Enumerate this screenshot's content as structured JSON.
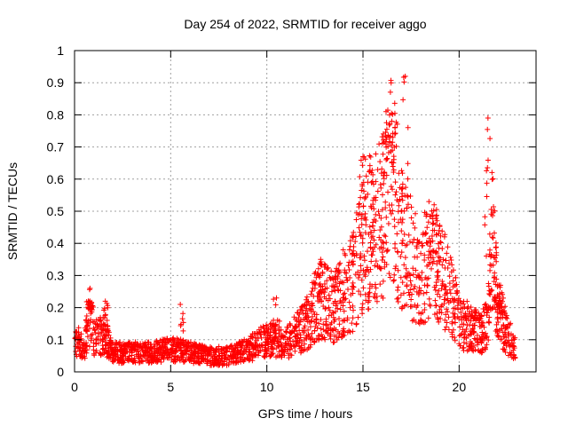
{
  "chart_data": {
    "type": "scatter",
    "title": "Day 254 of 2022, SRMTID for receiver aggo",
    "xlabel": "GPS time / hours",
    "ylabel": "SRMTID / TECUs",
    "xlim": [
      0,
      24
    ],
    "ylim": [
      0,
      1
    ],
    "xticks": [
      0,
      5,
      10,
      15,
      20
    ],
    "yticks": [
      0,
      0.1,
      0.2,
      0.3,
      0.4,
      0.5,
      0.6,
      0.7,
      0.8,
      0.9,
      1
    ],
    "xtick_labels": [
      "0",
      "5",
      "10",
      "15",
      "20"
    ],
    "ytick_labels": [
      "0",
      "0.1",
      "0.2",
      "0.3",
      "0.4",
      "0.5",
      "0.6",
      "0.7",
      "0.8",
      "0.9",
      "1"
    ],
    "grid": true,
    "marker": "+",
    "series": [
      {
        "name": "SRMTID",
        "color": "#ff0000",
        "envelope_note": "approximate trend of dense point cloud",
        "trend": [
          [
            0.0,
            0.11
          ],
          [
            0.5,
            0.08
          ],
          [
            0.8,
            0.18
          ],
          [
            1.0,
            0.1
          ],
          [
            1.5,
            0.12
          ],
          [
            2.0,
            0.06
          ],
          [
            3.0,
            0.06
          ],
          [
            4.0,
            0.06
          ],
          [
            5.0,
            0.07
          ],
          [
            6.0,
            0.06
          ],
          [
            7.0,
            0.05
          ],
          [
            8.0,
            0.05
          ],
          [
            9.0,
            0.07
          ],
          [
            10.0,
            0.1
          ],
          [
            11.0,
            0.09
          ],
          [
            12.0,
            0.14
          ],
          [
            12.5,
            0.2
          ],
          [
            13.0,
            0.22
          ],
          [
            13.5,
            0.2
          ],
          [
            14.0,
            0.25
          ],
          [
            14.5,
            0.28
          ],
          [
            15.0,
            0.4
          ],
          [
            15.5,
            0.45
          ],
          [
            16.0,
            0.48
          ],
          [
            16.5,
            0.6
          ],
          [
            17.0,
            0.42
          ],
          [
            17.5,
            0.35
          ],
          [
            18.0,
            0.3
          ],
          [
            18.5,
            0.35
          ],
          [
            19.0,
            0.3
          ],
          [
            19.5,
            0.26
          ],
          [
            20.0,
            0.15
          ],
          [
            20.5,
            0.14
          ],
          [
            21.0,
            0.12
          ],
          [
            21.5,
            0.15
          ],
          [
            21.7,
            0.45
          ],
          [
            22.0,
            0.2
          ],
          [
            22.5,
            0.12
          ],
          [
            23.0,
            0.06
          ]
        ],
        "peaks": [
          [
            0.8,
            0.22
          ],
          [
            1.6,
            0.22
          ],
          [
            5.5,
            0.21
          ],
          [
            10.5,
            0.23
          ],
          [
            12.8,
            0.35
          ],
          [
            15.0,
            0.67
          ],
          [
            16.2,
            0.81
          ],
          [
            16.5,
            0.78
          ],
          [
            17.2,
            0.92
          ],
          [
            18.7,
            0.52
          ],
          [
            21.5,
            0.79
          ],
          [
            22.0,
            0.24
          ]
        ]
      }
    ]
  }
}
